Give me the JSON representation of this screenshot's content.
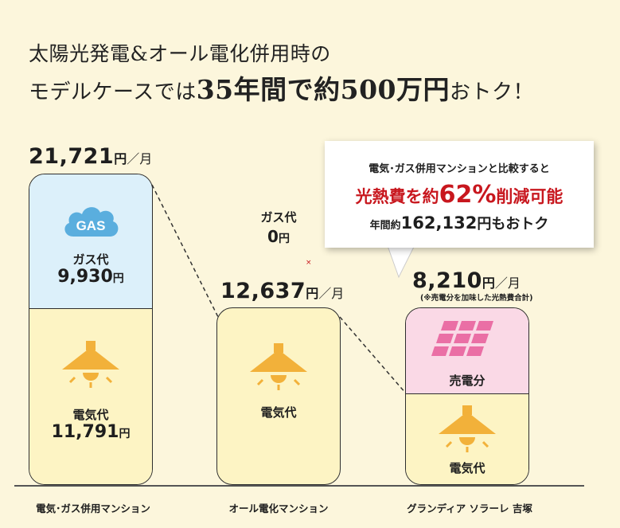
{
  "headline": {
    "line1": "太陽光発電&オール電化併用時の",
    "line2_prefix": "モデルケースでは",
    "line2_emph": "35年間で約500万円",
    "line2_suffix": "おトク！"
  },
  "callout": {
    "line1": "電気･ガス併用マンションと比較すると",
    "line2_a": "光熱費を約",
    "line2_pct": "62%",
    "line2_b": "削減可能",
    "line3_prefix": "年間約",
    "line3_amount": "162,132",
    "line3_suffix": "円もおトク"
  },
  "colors": {
    "background": "#fcf6dc",
    "gas": "#dcf0fa",
    "electricity": "#fdf4c4",
    "sale": "#fad9e6",
    "accent_red": "#c8171e",
    "icon_orange": "#f2b13a",
    "gas_cloud": "#5aaede",
    "panel_pink": "#ea6fa5"
  },
  "units": {
    "yen": "円",
    "per_month": "／月"
  },
  "chart_data": {
    "type": "bar",
    "stacked": true,
    "categories": [
      "電気･ガス併用マンション",
      "オール電化マンション",
      "グランディア ソラーレ 吉塚"
    ],
    "totals": [
      "21,721",
      "12,637",
      "8,210"
    ],
    "total_values": [
      21721,
      12637,
      8210
    ],
    "total_unit": "円／月",
    "note": "(※売電分を加味した光熱費合計)",
    "series": [
      {
        "name": "電気代",
        "values": [
          11791,
          12637,
          null
        ],
        "labels": [
          "11,791",
          "",
          ""
        ]
      },
      {
        "name": "ガス代",
        "values": [
          9930,
          0,
          0
        ],
        "labels": [
          "9,930",
          "0",
          ""
        ]
      },
      {
        "name": "売電分",
        "values": [
          null,
          null,
          null
        ],
        "labels": [
          "",
          "",
          ""
        ]
      }
    ],
    "icons": {
      "gas": "GAS",
      "electricity": "lamp-icon",
      "sale": "solar-panel-icon"
    }
  }
}
